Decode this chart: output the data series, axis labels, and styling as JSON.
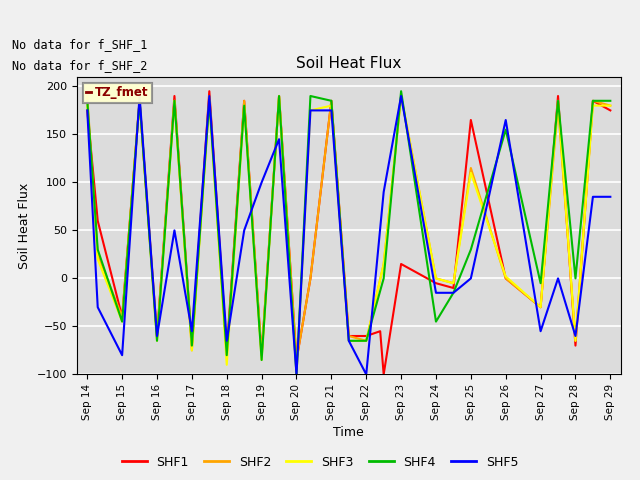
{
  "title": "Soil Heat Flux",
  "xlabel": "Time",
  "ylabel": "Soil Heat Flux",
  "ylim": [
    -100,
    210
  ],
  "yticks": [
    -100,
    -50,
    0,
    50,
    100,
    150,
    200
  ],
  "annotation_line1": "No data for f_SHF_1",
  "annotation_line2": "No data for f_SHF_2",
  "legend_label": "TZ_fmet",
  "background_color": "#dcdcdc",
  "grid_color": "#ffffff",
  "series": {
    "SHF1": {
      "color": "#ff0000",
      "x": [
        14.0,
        14.3,
        15.0,
        15.5,
        16.0,
        16.5,
        17.0,
        17.5,
        18.0,
        18.5,
        19.0,
        19.5,
        20.0,
        20.4,
        21.0,
        21.5,
        22.0,
        22.4,
        22.5,
        23.0,
        24.0,
        24.5,
        25.0,
        26.0,
        27.0,
        27.5,
        28.0,
        28.5,
        29.0
      ],
      "y": [
        175,
        60,
        -40,
        185,
        -60,
        190,
        -70,
        195,
        -75,
        185,
        -80,
        190,
        -85,
        0,
        185,
        -60,
        -60,
        -55,
        -100,
        15,
        -5,
        -10,
        165,
        0,
        -30,
        190,
        -70,
        185,
        175
      ]
    },
    "SHF2": {
      "color": "#ffa500",
      "x": [
        14.0,
        14.3,
        15.0,
        15.5,
        16.0,
        16.5,
        17.0,
        17.5,
        18.0,
        18.5,
        19.0,
        19.5,
        20.0,
        20.4,
        21.0,
        21.5,
        22.0,
        22.5,
        23.0,
        24.0,
        24.5,
        25.0,
        26.0,
        27.0,
        27.5,
        28.0,
        28.5,
        29.0
      ],
      "y": [
        190,
        25,
        -40,
        185,
        -60,
        185,
        -75,
        190,
        -80,
        185,
        -80,
        190,
        -85,
        0,
        185,
        -60,
        -65,
        15,
        190,
        0,
        -5,
        115,
        0,
        -30,
        180,
        -65,
        185,
        180
      ]
    },
    "SHF3": {
      "color": "#ffff00",
      "x": [
        14.0,
        14.3,
        15.0,
        15.5,
        16.0,
        16.5,
        17.0,
        17.5,
        18.0,
        18.5,
        19.0,
        19.5,
        20.0,
        20.4,
        21.0,
        21.5,
        22.0,
        22.5,
        23.0,
        24.0,
        24.5,
        25.0,
        26.0,
        27.0,
        27.5,
        28.0,
        28.5,
        29.0
      ],
      "y": [
        180,
        20,
        -45,
        185,
        -65,
        185,
        -75,
        185,
        -90,
        180,
        -85,
        190,
        -100,
        175,
        180,
        -65,
        -65,
        15,
        190,
        0,
        -5,
        110,
        2,
        -30,
        185,
        -65,
        180,
        180
      ]
    },
    "SHF4": {
      "color": "#00bb00",
      "x": [
        14.0,
        14.3,
        15.0,
        15.5,
        16.0,
        16.5,
        17.0,
        17.5,
        18.0,
        18.5,
        19.0,
        19.5,
        20.0,
        20.4,
        21.0,
        21.5,
        22.0,
        22.5,
        23.0,
        24.0,
        24.5,
        25.0,
        26.0,
        27.0,
        27.5,
        28.0,
        28.5,
        29.0
      ],
      "y": [
        185,
        30,
        -45,
        185,
        -65,
        185,
        -70,
        185,
        -80,
        180,
        -85,
        190,
        -100,
        190,
        185,
        -65,
        -65,
        0,
        195,
        -45,
        -15,
        30,
        155,
        -5,
        185,
        0,
        185,
        185
      ]
    },
    "SHF5": {
      "color": "#0000ff",
      "x": [
        14.0,
        14.3,
        15.0,
        15.5,
        16.0,
        16.5,
        17.0,
        17.5,
        18.0,
        18.5,
        19.0,
        19.5,
        20.0,
        20.4,
        21.0,
        21.5,
        22.0,
        22.5,
        23.0,
        24.0,
        24.5,
        25.0,
        26.0,
        27.0,
        27.5,
        28.0,
        28.5,
        29.0
      ],
      "y": [
        175,
        -30,
        -80,
        190,
        -60,
        50,
        -55,
        190,
        -65,
        50,
        100,
        145,
        -100,
        175,
        175,
        -65,
        -100,
        90,
        190,
        -15,
        -15,
        0,
        165,
        -55,
        0,
        -60,
        85,
        85
      ]
    }
  },
  "xlim": [
    13.7,
    29.3
  ],
  "xtick_positions": [
    14,
    15,
    16,
    17,
    18,
    19,
    20,
    21,
    22,
    23,
    24,
    25,
    26,
    27,
    28,
    29
  ],
  "xtick_labels": [
    "Sep 14",
    "Sep 15",
    "Sep 16",
    "Sep 17",
    "Sep 18",
    "Sep 19",
    "Sep 20",
    "Sep 21",
    "Sep 22",
    "Sep 23",
    "Sep 24",
    "Sep 25",
    "Sep 26",
    "Sep 27",
    "Sep 28",
    "Sep 29"
  ]
}
